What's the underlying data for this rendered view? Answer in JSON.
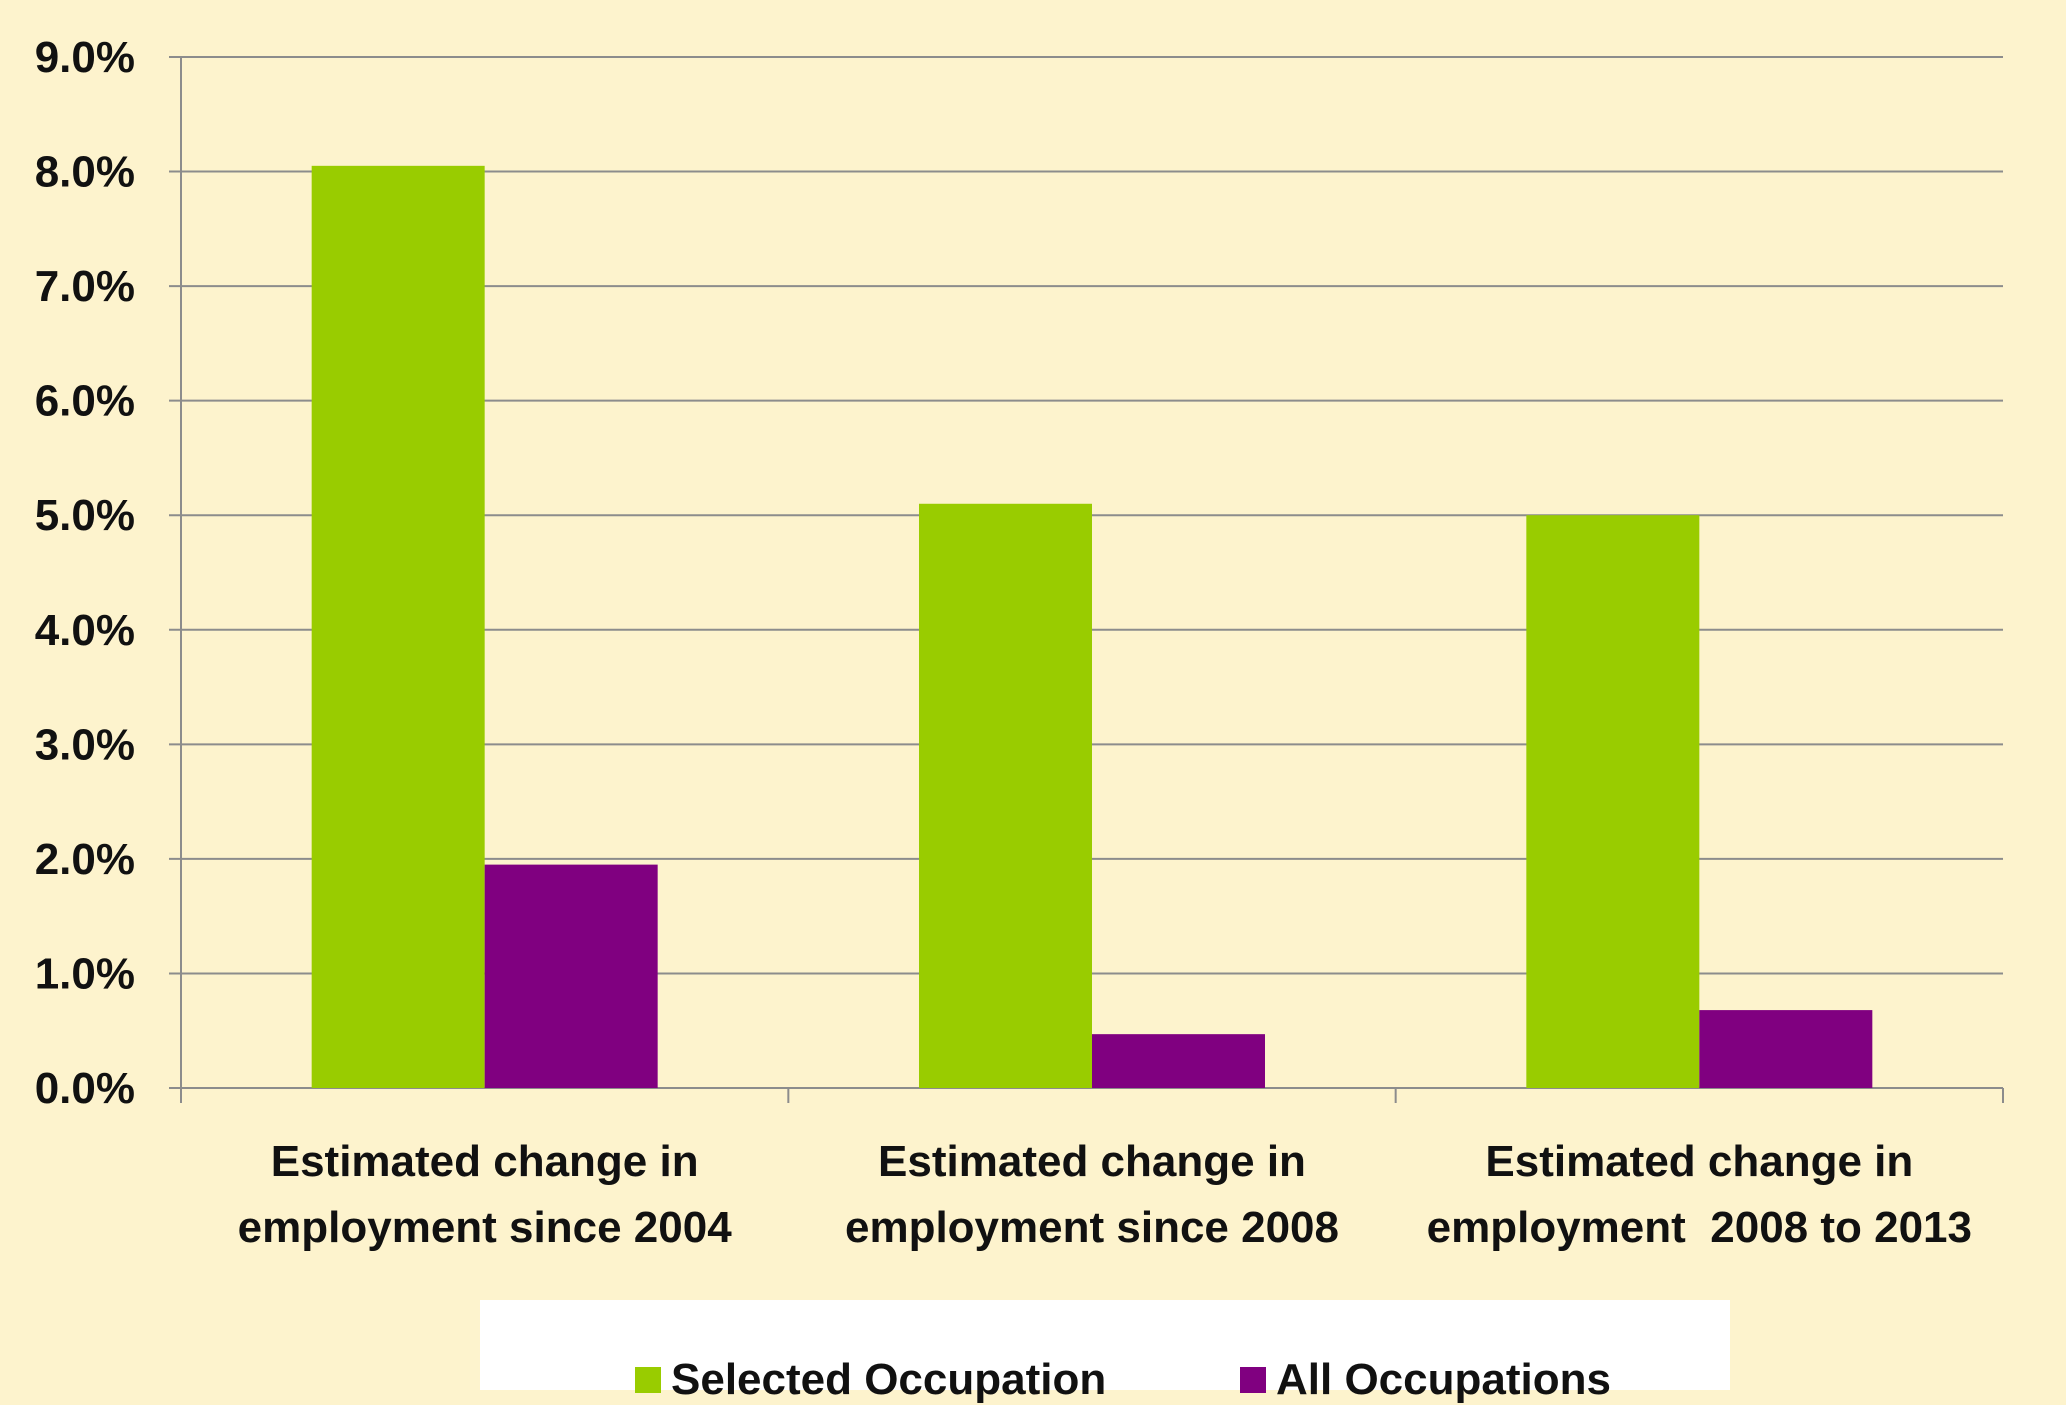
{
  "chart_data": {
    "type": "bar",
    "categories": [
      [
        "Estimated change in",
        "employment since 2004"
      ],
      [
        "Estimated change in",
        "employment since 2008"
      ],
      [
        "Estimated change in",
        "employment  2008 to 2013"
      ]
    ],
    "series": [
      {
        "name": "Selected Occupation",
        "color": "#99cc00",
        "values": [
          8.05,
          5.1,
          5.0
        ]
      },
      {
        "name": "All Occupations",
        "color": "#800080",
        "values": [
          1.95,
          0.47,
          0.68
        ]
      }
    ],
    "yticks": [
      "0.0%",
      "1.0%",
      "2.0%",
      "3.0%",
      "4.0%",
      "5.0%",
      "6.0%",
      "7.0%",
      "8.0%",
      "9.0%"
    ],
    "ylim": [
      0,
      9
    ],
    "grid": true,
    "legend_position": "bottom"
  },
  "legend": {
    "items": [
      {
        "label": "Selected Occupation",
        "color": "#99cc00"
      },
      {
        "label": "All Occupations",
        "color": "#800080"
      }
    ]
  }
}
